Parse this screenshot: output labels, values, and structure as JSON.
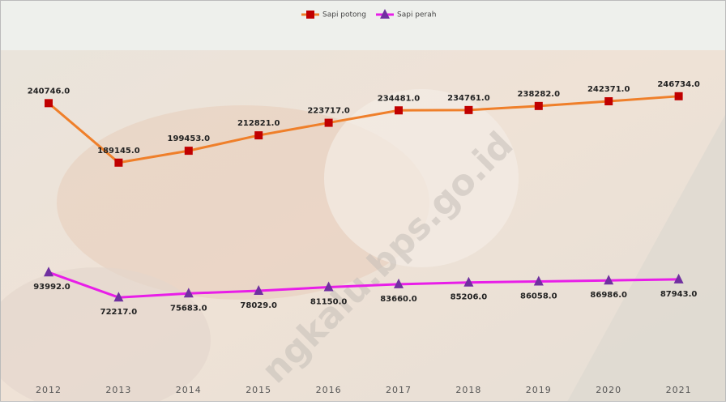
{
  "chart_data": {
    "type": "line",
    "categories": [
      "2012",
      "2013",
      "2014",
      "2015",
      "2016",
      "2017",
      "2018",
      "2019",
      "2020",
      "2021"
    ],
    "series": [
      {
        "name": "Sapi potong",
        "color": "#ef7f2a",
        "marker_color": "#c00000",
        "marker": "square",
        "values": [
          240746,
          189145,
          199453,
          212821,
          223717,
          234481,
          234761,
          238282,
          242371,
          246734
        ],
        "value_labels": [
          "240746.0",
          "189145.0",
          "199453.0",
          "212821.0",
          "223717.0",
          "234481.0",
          "234761.0",
          "238282.0",
          "242371.0",
          "246734.0"
        ]
      },
      {
        "name": "Sapi perah",
        "color": "#e81ee8",
        "marker_color": "#7030a0",
        "marker": "triangle",
        "values": [
          93992,
          72217,
          75683,
          78029,
          81150,
          83660,
          85206,
          86058,
          86986,
          87943
        ],
        "value_labels": [
          "93992.0",
          "72217.0",
          "75683.0",
          "78029.0",
          "81150.0",
          "83660.0",
          "85206.0",
          "86058.0",
          "86986.0",
          "87943.0"
        ]
      }
    ],
    "ylim": [
      0,
      300000
    ],
    "legend": "top",
    "watermark": "ngkalu.bps.go.id"
  }
}
